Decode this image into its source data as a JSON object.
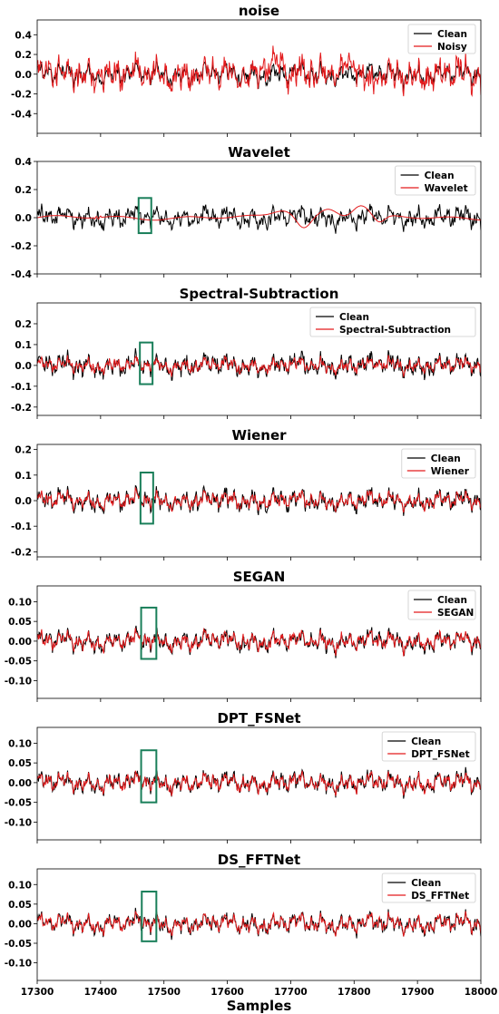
{
  "colors": {
    "clean": "#000000",
    "processed": "#e31a1c",
    "highlight": "#1a7f5a"
  },
  "xlabel": "Samples",
  "x_ticks": [
    "17300",
    "17400",
    "17500",
    "17600",
    "17700",
    "17800",
    "17900",
    "18000"
  ],
  "chart_data": [
    {
      "type": "line",
      "title": "noise",
      "xlim": [
        17300,
        18000
      ],
      "ylim": [
        -0.6,
        0.55
      ],
      "yticks": [
        -0.4,
        -0.2,
        0.0,
        0.2,
        0.4
      ],
      "ytick_labels": [
        "-0.4",
        "-0.2",
        "0.0",
        "0.2",
        "0.4"
      ],
      "legend_position": "top-right",
      "series": [
        {
          "name": "Clean",
          "role": "clean",
          "noise": 0.014,
          "amp": 1.0
        },
        {
          "name": "Noisy",
          "role": "processed",
          "noise": 0.04,
          "amp": 1.3,
          "bumps": [
            [
              17400,
              0.1,
              3
            ],
            [
              17675,
              0.12,
              25
            ],
            [
              17700,
              -0.1,
              10
            ],
            [
              17790,
              0.12,
              20
            ],
            [
              17825,
              -0.15,
              12
            ]
          ]
        }
      ],
      "highlight": null
    },
    {
      "type": "line",
      "title": "Wavelet",
      "xlim": [
        17300,
        18000
      ],
      "ylim": [
        -0.4,
        0.4
      ],
      "yticks": [
        -0.4,
        -0.2,
        0.0,
        0.2,
        0.4
      ],
      "ytick_labels": [
        "-0.4",
        "-0.2",
        "0.0",
        "0.2",
        "0.4"
      ],
      "legend_position": "top-right",
      "series": [
        {
          "name": "Clean",
          "role": "clean",
          "noise": 0.018,
          "amp": 1.0
        },
        {
          "name": "Wavelet",
          "role": "processed",
          "smooth": true,
          "waves": [
            [
              17690,
              0.06,
              25
            ],
            [
              17720,
              -0.08,
              15
            ],
            [
              17760,
              0.06,
              20
            ],
            [
              17810,
              0.09,
              18
            ],
            [
              17840,
              -0.05,
              12
            ]
          ]
        }
      ],
      "highlight": {
        "x": [
          17460,
          17480
        ],
        "y": [
          -0.11,
          0.14
        ]
      }
    },
    {
      "type": "line",
      "title": "Spectral-Subtraction",
      "xlim": [
        17300,
        18000
      ],
      "ylim": [
        -0.24,
        0.3
      ],
      "yticks": [
        -0.2,
        -0.1,
        0.0,
        0.1,
        0.2
      ],
      "ytick_labels": [
        "-0.2",
        "-0.1",
        "0.0",
        "0.1",
        "0.2"
      ],
      "legend_position": "top-right",
      "series": [
        {
          "name": "Clean",
          "role": "clean",
          "noise": 0.022,
          "amp": 1.0
        },
        {
          "name": "Spectral-Subtraction",
          "role": "processed",
          "noise": 0.012,
          "amp": 0.7
        }
      ],
      "highlight": {
        "x": [
          17462,
          17482
        ],
        "y": [
          -0.09,
          0.11
        ]
      }
    },
    {
      "type": "line",
      "title": "Wiener",
      "xlim": [
        17300,
        18000
      ],
      "ylim": [
        -0.22,
        0.22
      ],
      "yticks": [
        -0.2,
        -0.1,
        0.0,
        0.1,
        0.2
      ],
      "ytick_labels": [
        "-0.2",
        "-0.1",
        "0.0",
        "0.1",
        "0.2"
      ],
      "legend_position": "top-right",
      "series": [
        {
          "name": "Clean",
          "role": "clean",
          "noise": 0.022,
          "amp": 1.0
        },
        {
          "name": "Wiener",
          "role": "processed",
          "noise": 0.008,
          "amp": 0.85
        }
      ],
      "highlight": {
        "x": [
          17463,
          17483
        ],
        "y": [
          -0.09,
          0.11
        ]
      }
    },
    {
      "type": "line",
      "title": "SEGAN",
      "xlim": [
        17300,
        18000
      ],
      "ylim": [
        -0.145,
        0.14
      ],
      "yticks": [
        -0.1,
        -0.05,
        0.0,
        0.05,
        0.1
      ],
      "ytick_labels": [
        "-0.10",
        "-0.05",
        "0.00",
        "0.05",
        "0.10"
      ],
      "legend_position": "top-right",
      "series": [
        {
          "name": "Clean",
          "role": "clean",
          "noise": 0.018,
          "amp": 1.0
        },
        {
          "name": "SEGAN",
          "role": "processed",
          "noise": 0.012,
          "amp": 0.9
        }
      ],
      "highlight": {
        "x": [
          17464,
          17488
        ],
        "y": [
          -0.045,
          0.085
        ]
      }
    },
    {
      "type": "line",
      "title": "DPT_FSNet",
      "xlim": [
        17300,
        18000
      ],
      "ylim": [
        -0.145,
        0.14
      ],
      "yticks": [
        -0.1,
        -0.05,
        0.0,
        0.05,
        0.1
      ],
      "ytick_labels": [
        "-0.10",
        "-0.05",
        "0.00",
        "0.05",
        "0.10"
      ],
      "legend_position": "top-right",
      "series": [
        {
          "name": "Clean",
          "role": "clean",
          "noise": 0.018,
          "amp": 1.0
        },
        {
          "name": "DPT_FSNet",
          "role": "processed",
          "noise": 0.011,
          "amp": 0.9
        }
      ],
      "highlight": {
        "x": [
          17464,
          17488
        ],
        "y": [
          -0.05,
          0.082
        ]
      }
    },
    {
      "type": "line",
      "title": "DS_FFTNet",
      "xlim": [
        17300,
        18000
      ],
      "ylim": [
        -0.145,
        0.14
      ],
      "yticks": [
        -0.1,
        -0.05,
        0.0,
        0.05,
        0.1
      ],
      "ytick_labels": [
        "-0.10",
        "-0.05",
        "0.00",
        "0.05",
        "0.10"
      ],
      "legend_position": "top-right",
      "series": [
        {
          "name": "Clean",
          "role": "clean",
          "noise": 0.018,
          "amp": 1.0
        },
        {
          "name": "DS_FFTNet",
          "role": "processed",
          "noise": 0.005,
          "amp": 0.95
        }
      ],
      "highlight": {
        "x": [
          17465,
          17488
        ],
        "y": [
          -0.045,
          0.082
        ]
      }
    }
  ]
}
